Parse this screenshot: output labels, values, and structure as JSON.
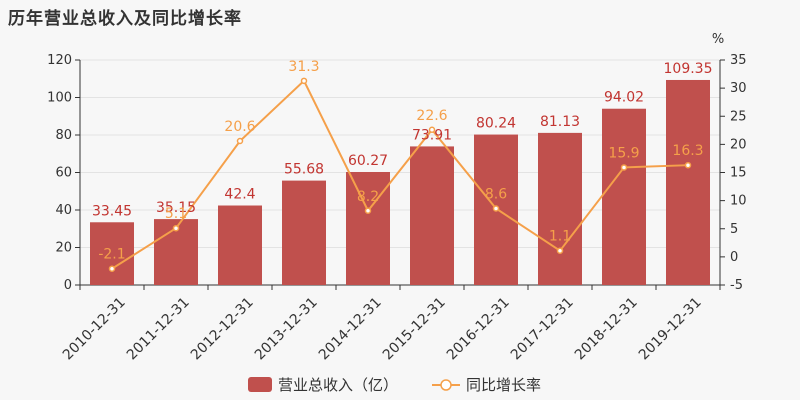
{
  "title": "历年营业总收入及同比增长率",
  "chart_data": {
    "type": "bar",
    "categories": [
      "2010-12-31",
      "2011-12-31",
      "2012-12-31",
      "2013-12-31",
      "2014-12-31",
      "2015-12-31",
      "2016-12-31",
      "2017-12-31",
      "2018-12-31",
      "2019-12-31"
    ],
    "series": [
      {
        "name": "营业总收入（亿）",
        "type": "bar",
        "axis": "left",
        "color": "#c0504d",
        "values": [
          33.45,
          35.15,
          42.4,
          55.68,
          60.27,
          73.91,
          80.24,
          81.13,
          94.02,
          109.35
        ]
      },
      {
        "name": "同比增长率",
        "type": "line",
        "axis": "right",
        "color": "#f5a04a",
        "values": [
          -2.1,
          5.1,
          20.6,
          31.3,
          8.2,
          22.6,
          8.6,
          1.1,
          15.9,
          16.3
        ]
      }
    ],
    "y_left": {
      "min": 0,
      "max": 120,
      "ticks": [
        0,
        20,
        40,
        60,
        80,
        100,
        120
      ]
    },
    "y_right": {
      "min": -5,
      "max": 35,
      "ticks": [
        -5,
        0,
        5,
        10,
        15,
        20,
        25,
        30,
        35
      ],
      "unit": "%"
    },
    "legend": "bottom"
  }
}
